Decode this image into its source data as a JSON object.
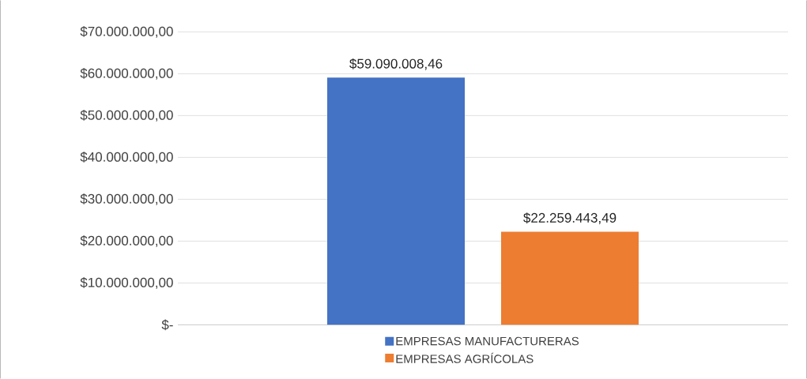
{
  "chart_data": {
    "type": "bar",
    "categories": [
      null
    ],
    "series": [
      {
        "name": "EMPRESAS MANUFACTURERAS",
        "color": "#4472c4",
        "values": [
          59090008.46
        ],
        "value_labels": [
          "$59.090.008,46"
        ]
      },
      {
        "name": "EMPRESAS AGRÍCOLAS",
        "color": "#ed7d31",
        "values": [
          22259443.49
        ],
        "value_labels": [
          "$22.259.443,49"
        ]
      }
    ],
    "ylim": [
      0,
      70000000
    ],
    "yticks": [
      {
        "value": 0,
        "label": "$-"
      },
      {
        "value": 10000000,
        "label": "$10.000.000,00"
      },
      {
        "value": 20000000,
        "label": "$20.000.000,00"
      },
      {
        "value": 30000000,
        "label": "$30.000.000,00"
      },
      {
        "value": 40000000,
        "label": "$40.000.000,00"
      },
      {
        "value": 50000000,
        "label": "$50.000.000,00"
      },
      {
        "value": 60000000,
        "label": "$60.000.000,00"
      },
      {
        "value": 70000000,
        "label": "$70.000.000,00"
      }
    ],
    "grid": "y",
    "legend": "bottom"
  }
}
